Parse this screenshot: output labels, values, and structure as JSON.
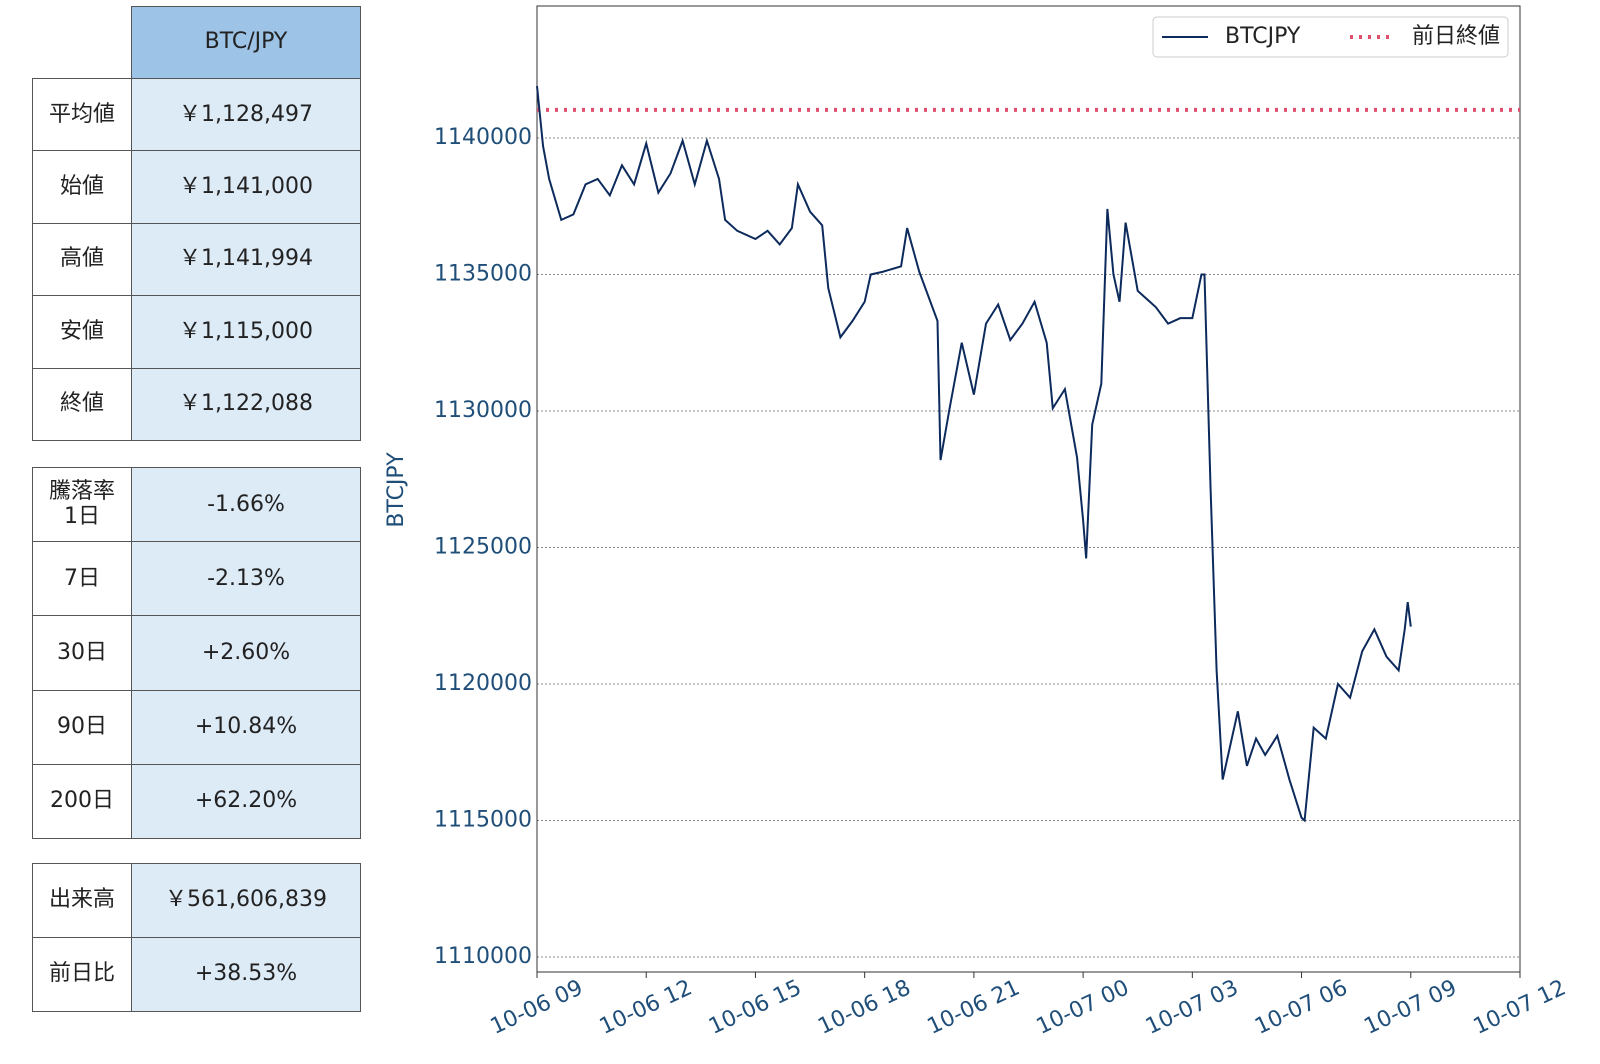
{
  "tables": [
    {
      "header": "BTC/JPY",
      "rows": [
        [
          "平均値",
          "￥1,128,497"
        ],
        [
          "始値",
          "￥1,141,000"
        ],
        [
          "高値",
          "￥1,141,994"
        ],
        [
          "安値",
          "￥1,115,000"
        ],
        [
          "終値",
          "￥1,122,088"
        ]
      ]
    },
    {
      "rows": [
        [
          "騰落率\n1日",
          "-1.66%"
        ],
        [
          "7日",
          "-2.13%"
        ],
        [
          "30日",
          "+2.60%"
        ],
        [
          "90日",
          "+10.84%"
        ],
        [
          "200日",
          "+62.20%"
        ]
      ]
    },
    {
      "rows": [
        [
          "出来高",
          "￥561,606,839"
        ],
        [
          "前日比",
          "+38.53%"
        ]
      ]
    }
  ],
  "chart_data": {
    "type": "line",
    "y_label": "BTCJPY",
    "x": [
      "10-06 09:00",
      "10-06 09:10",
      "10-06 09:20",
      "10-06 09:40",
      "10-06 10:00",
      "10-06 10:20",
      "10-06 10:40",
      "10-06 11:00",
      "10-06 11:20",
      "10-06 11:40",
      "10-06 12:00",
      "10-06 12:20",
      "10-06 12:40",
      "10-06 13:00",
      "10-06 13:20",
      "10-06 13:40",
      "10-06 14:00",
      "10-06 14:10",
      "10-06 14:30",
      "10-06 15:00",
      "10-06 15:20",
      "10-06 15:40",
      "10-06 16:00",
      "10-06 16:10",
      "10-06 16:30",
      "10-06 16:50",
      "10-06 17:00",
      "10-06 17:20",
      "10-06 17:40",
      "10-06 18:00",
      "10-06 18:10",
      "10-06 18:30",
      "10-06 19:00",
      "10-06 19:10",
      "10-06 19:30",
      "10-06 20:00",
      "10-06 20:05",
      "10-06 20:20",
      "10-06 20:40",
      "10-06 21:00",
      "10-06 21:20",
      "10-06 21:40",
      "10-06 22:00",
      "10-06 22:20",
      "10-06 22:40",
      "10-06 23:00",
      "10-06 23:10",
      "10-06 23:30",
      "10-06 23:50",
      "10-07 00:00",
      "10-07 00:05",
      "10-07 00:15",
      "10-07 00:30",
      "10-07 00:40",
      "10-07 00:50",
      "10-07 01:00",
      "10-07 01:10",
      "10-07 01:30",
      "10-07 01:50",
      "10-07 02:00",
      "10-07 02:20",
      "10-07 02:40",
      "10-07 03:00",
      "10-07 03:15",
      "10-07 03:20",
      "10-07 03:30",
      "10-07 03:40",
      "10-07 03:50",
      "10-07 04:00",
      "10-07 04:15",
      "10-07 04:30",
      "10-07 04:45",
      "10-07 05:00",
      "10-07 05:20",
      "10-07 05:40",
      "10-07 06:00",
      "10-07 06:05",
      "10-07 06:20",
      "10-07 06:40",
      "10-07 07:00",
      "10-07 07:20",
      "10-07 07:40",
      "10-07 08:00",
      "10-07 08:20",
      "10-07 08:40",
      "10-07 08:50",
      "10-07 08:55",
      "10-07 09:00"
    ],
    "series": [
      {
        "name": "BTCJPY",
        "color": "#0d2a5c",
        "values": [
          1141900,
          1139700,
          1138500,
          1137000,
          1137200,
          1138300,
          1138500,
          1137900,
          1139000,
          1138300,
          1139800,
          1138000,
          1138700,
          1139900,
          1138300,
          1139900,
          1138500,
          1137000,
          1136600,
          1136300,
          1136600,
          1136100,
          1136700,
          1138300,
          1137300,
          1136800,
          1134500,
          1132700,
          1133300,
          1134000,
          1135000,
          1135100,
          1135300,
          1136700,
          1135100,
          1133300,
          1128200,
          1130100,
          1132500,
          1130600,
          1133200,
          1133900,
          1132600,
          1133200,
          1134000,
          1132500,
          1130100,
          1130800,
          1128300,
          1126000,
          1124600,
          1129500,
          1131000,
          1137400,
          1135000,
          1134000,
          1136900,
          1134400,
          1134000,
          1133800,
          1133200,
          1133400,
          1133400,
          1135000,
          1135000,
          1127200,
          1120500,
          1116500,
          1117500,
          1119000,
          1117000,
          1118000,
          1117400,
          1118100,
          1116500,
          1115100,
          1115000,
          1118400,
          1118000,
          1120000,
          1119500,
          1121200,
          1122000,
          1121000,
          1120500,
          1122000,
          1123000,
          1122100
        ]
      }
    ],
    "reference_line": {
      "name": "前日終値",
      "value": 1141030,
      "color": "#e0506e"
    },
    "xlim": [
      "10-06 09",
      "10-07 12"
    ],
    "xticks": [
      "10-06 09",
      "10-06 12",
      "10-06 15",
      "10-06 18",
      "10-06 21",
      "10-07 00",
      "10-07 03",
      "10-07 06",
      "10-07 09",
      "10-07 12"
    ],
    "ylim": [
      1109450,
      1144835
    ],
    "yticks": [
      1110000,
      1115000,
      1120000,
      1125000,
      1130000,
      1135000,
      1140000
    ],
    "grid": true,
    "legend": "upper right"
  }
}
